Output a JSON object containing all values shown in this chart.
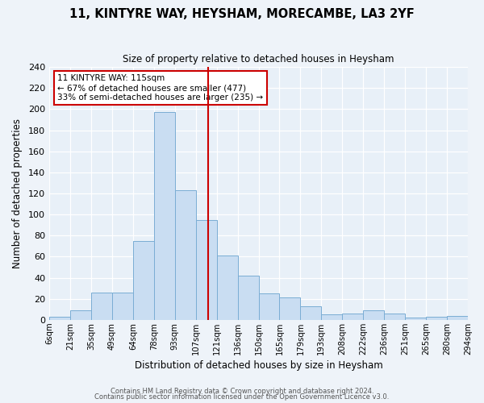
{
  "title": "11, KINTYRE WAY, HEYSHAM, MORECAMBE, LA3 2YF",
  "subtitle": "Size of property relative to detached houses in Heysham",
  "xlabel": "Distribution of detached houses by size in Heysham",
  "ylabel": "Number of detached properties",
  "bin_labels": [
    "6sqm",
    "21sqm",
    "35sqm",
    "49sqm",
    "64sqm",
    "78sqm",
    "93sqm",
    "107sqm",
    "121sqm",
    "136sqm",
    "150sqm",
    "165sqm",
    "179sqm",
    "193sqm",
    "208sqm",
    "222sqm",
    "236sqm",
    "251sqm",
    "265sqm",
    "280sqm",
    "294sqm"
  ],
  "bar_values": [
    3,
    9,
    26,
    26,
    75,
    197,
    123,
    95,
    61,
    42,
    25,
    21,
    13,
    5,
    6,
    9,
    6,
    2,
    3,
    4
  ],
  "bar_color": "#c9ddf2",
  "bar_edge_color": "#7aadd4",
  "ylim": [
    0,
    240
  ],
  "yticks": [
    0,
    20,
    40,
    60,
    80,
    100,
    120,
    140,
    160,
    180,
    200,
    220,
    240
  ],
  "vline_color": "#cc0000",
  "annotation_title": "11 KINTYRE WAY: 115sqm",
  "annotation_line1": "← 67% of detached houses are smaller (477)",
  "annotation_line2": "33% of semi-detached houses are larger (235) →",
  "annotation_box_color": "#cc0000",
  "footer_line1": "Contains HM Land Registry data © Crown copyright and database right 2024.",
  "footer_line2": "Contains public sector information licensed under the Open Government Licence v3.0.",
  "fig_bg_color": "#eef3f9",
  "plot_bg_color": "#e8f0f8"
}
